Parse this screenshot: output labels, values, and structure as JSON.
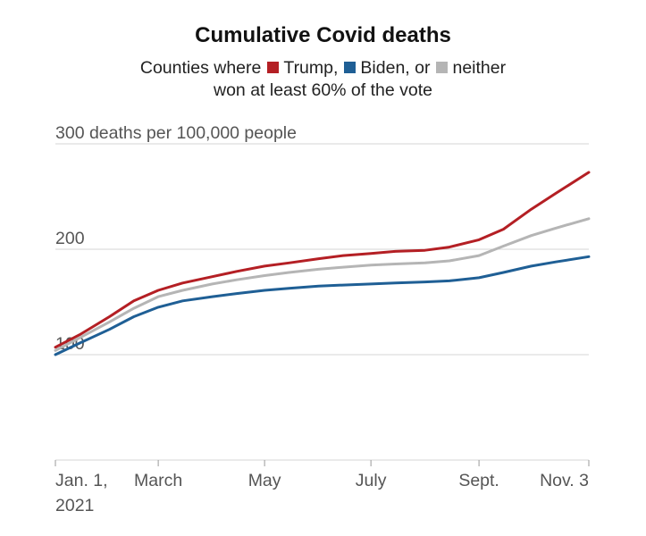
{
  "title": "Cumulative Covid deaths",
  "subtitle": {
    "prefix": "Counties where",
    "trump": "Trump,",
    "biden": "Biden, or",
    "neither": "neither",
    "line2": "won at least 60% of the vote"
  },
  "colors": {
    "trump": "#b41f24",
    "biden": "#1f5f95",
    "neither": "#b5b5b5",
    "grid": "#d4d4d4",
    "text": "#555555"
  },
  "chart_data": {
    "type": "line",
    "title": "Cumulative Covid deaths",
    "ylabel": "300 deaths per 100,000 people",
    "yticks": [
      {
        "value": 100,
        "label": "100"
      },
      {
        "value": 200,
        "label": "200"
      },
      {
        "value": 300,
        "label": "300 deaths per 100,000 people"
      }
    ],
    "ylim": [
      0,
      300
    ],
    "xlim": [
      "2021-01-01",
      "2021-11-03"
    ],
    "xticks": [
      {
        "date": "2021-01-01",
        "label": "Jan. 1,",
        "label2": "2021"
      },
      {
        "date": "2021-03-01",
        "label": "March"
      },
      {
        "date": "2021-05-01",
        "label": "May"
      },
      {
        "date": "2021-07-01",
        "label": "July"
      },
      {
        "date": "2021-09-01",
        "label": "Sept."
      },
      {
        "date": "2021-11-03",
        "label": "Nov. 3"
      }
    ],
    "x": [
      "2021-01-01",
      "2021-01-15",
      "2021-02-01",
      "2021-02-15",
      "2021-03-01",
      "2021-03-15",
      "2021-04-01",
      "2021-04-15",
      "2021-05-01",
      "2021-05-15",
      "2021-06-01",
      "2021-06-15",
      "2021-07-01",
      "2021-07-15",
      "2021-08-01",
      "2021-08-15",
      "2021-09-01",
      "2021-09-15",
      "2021-10-01",
      "2021-10-15",
      "2021-11-03"
    ],
    "series": [
      {
        "name": "Trump",
        "color": "trump",
        "values": [
          107,
          119,
          136,
          151,
          161,
          168,
          174,
          179,
          184,
          187,
          191,
          194,
          196,
          198,
          199,
          202,
          209,
          219,
          238,
          253,
          273
        ]
      },
      {
        "name": "neither",
        "color": "neither",
        "values": [
          104,
          116,
          131,
          144,
          155,
          161,
          167,
          171,
          175,
          178,
          181,
          183,
          185,
          186,
          187,
          189,
          194,
          203,
          213,
          220,
          229
        ]
      },
      {
        "name": "Biden",
        "color": "biden",
        "values": [
          100,
          111,
          124,
          136,
          145,
          151,
          155,
          158,
          161,
          163,
          165,
          166,
          167,
          168,
          169,
          170,
          173,
          178,
          184,
          188,
          193
        ]
      }
    ]
  }
}
